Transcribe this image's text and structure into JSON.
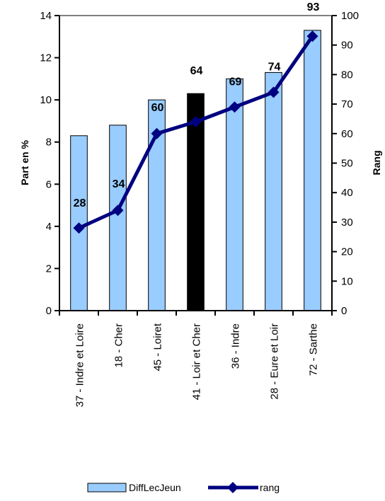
{
  "chart_data": {
    "type": "bar",
    "categories": [
      "37 - Indre et Loire",
      "18 - Cher",
      "45 - Loiret",
      "41 - Loir et Cher",
      "36 - Indre",
      "28 - Eure et Loir",
      "72 - Sarthe"
    ],
    "series": [
      {
        "name": "DiffLecJeun",
        "type": "bar",
        "axis": "left",
        "values": [
          8.3,
          8.8,
          10.0,
          10.3,
          11.0,
          11.3,
          13.3
        ],
        "color": "#99ccff",
        "highlight_index": 3,
        "highlight_color": "#000000"
      },
      {
        "name": "rang",
        "type": "line",
        "axis": "right",
        "values": [
          28,
          34,
          60,
          64,
          69,
          74,
          93
        ],
        "labels": [
          "28",
          "34",
          "60",
          "64",
          "69",
          "74",
          "93"
        ],
        "color": "#000080",
        "marker": "diamond"
      }
    ],
    "ylabel": "Part en %",
    "ylabel_right": "Rang",
    "ylim": [
      0,
      14
    ],
    "ylim_right": [
      0,
      100
    ],
    "yticks": [
      "0",
      "2",
      "4",
      "6",
      "8",
      "10",
      "12",
      "14"
    ],
    "yticks_right": [
      "0",
      "10",
      "20",
      "30",
      "40",
      "50",
      "60",
      "70",
      "80",
      "90",
      "100"
    ],
    "grid": false,
    "legend_position": "bottom",
    "legend": [
      "DiffLecJeun",
      "rang"
    ]
  }
}
